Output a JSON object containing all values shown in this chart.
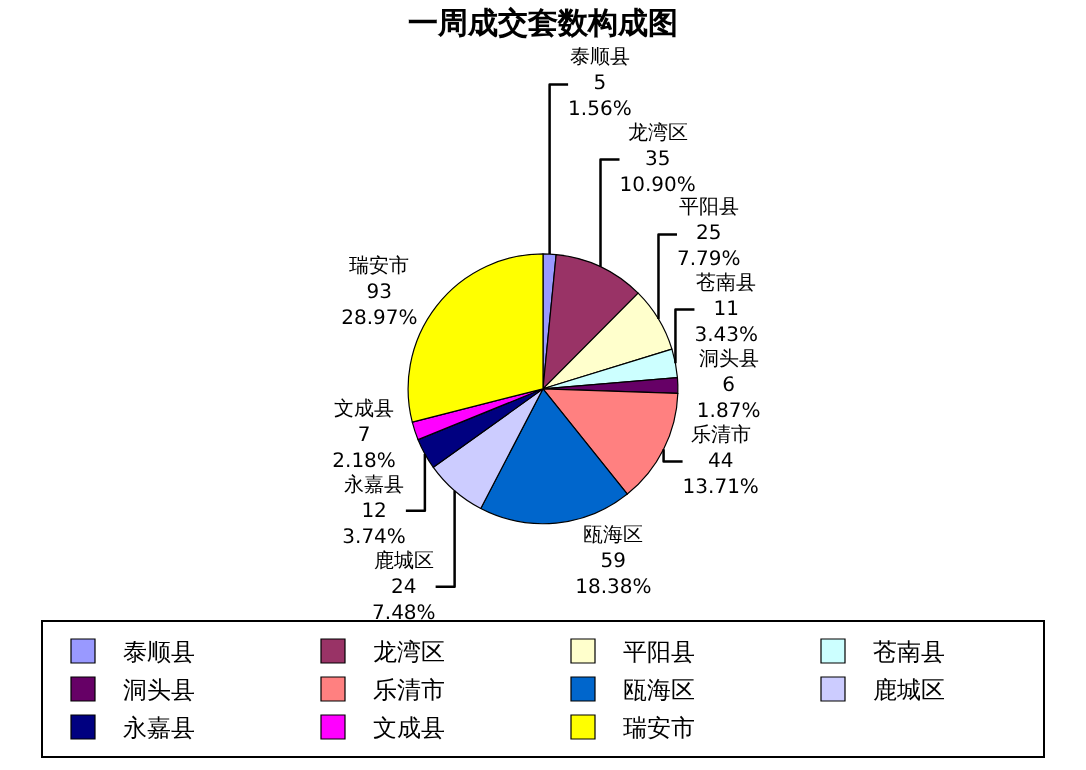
{
  "chart_data": {
    "type": "pie",
    "title": "一周成交套数构成图",
    "categories": [
      "泰顺县",
      "龙湾区",
      "平阳县",
      "苍南县",
      "洞头县",
      "乐清市",
      "瓯海区",
      "鹿城区",
      "永嘉县",
      "文成县",
      "瑞安市"
    ],
    "values": [
      5,
      35,
      25,
      11,
      6,
      44,
      59,
      24,
      12,
      7,
      93
    ],
    "value_labels": [
      "5\n1.56%",
      "35\n10.90%",
      "25\n7.79%",
      "11\n3.43%",
      "6\n1.87%",
      "44\n13.71%",
      "59\n18.38%",
      "24\n7.48%",
      "12\n3.74%",
      "7\n2.18%",
      "93\n28.97%"
    ],
    "colors": [
      "#9999ff",
      "#993366",
      "#ffffcc",
      "#ccffff",
      "#660066",
      "#ff8080",
      "#0066cc",
      "#ccccff",
      "#000080",
      "#ff00ff",
      "#ffff00"
    ],
    "legend": "bottom"
  }
}
